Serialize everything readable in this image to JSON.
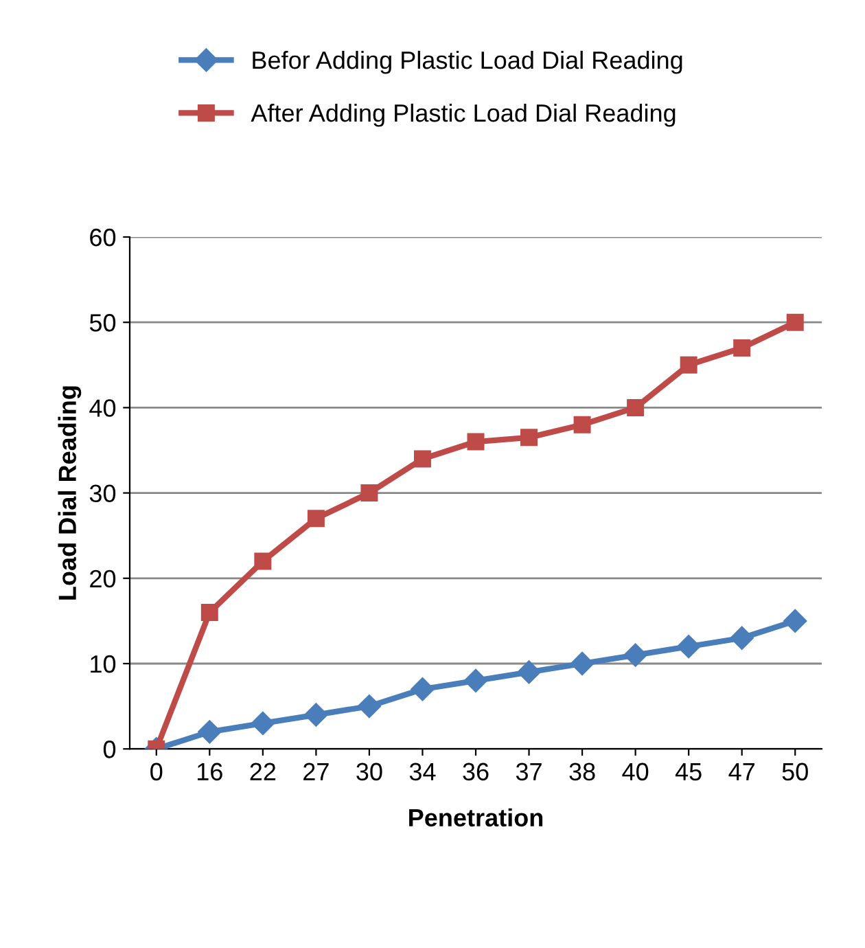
{
  "chart_data": {
    "type": "line",
    "xlabel": "Penetration",
    "ylabel": "Load Dial Reading",
    "categories": [
      "0",
      "16",
      "22",
      "27",
      "30",
      "34",
      "36",
      "37",
      "38",
      "40",
      "45",
      "47",
      "50"
    ],
    "series": [
      {
        "name": "Befor Adding Plastic Load Dial Reading",
        "color": "#4a7ebb",
        "marker": "diamond",
        "values": [
          0,
          2,
          3,
          4,
          5,
          7,
          8,
          9,
          10,
          11,
          12,
          13,
          15
        ]
      },
      {
        "name": "After Adding Plastic Load Dial Reading",
        "color": "#be4b48",
        "marker": "square",
        "values": [
          0,
          16,
          22,
          27,
          30,
          34,
          36,
          36.5,
          38,
          40,
          45,
          47,
          50
        ]
      }
    ],
    "ylim": [
      0,
      60
    ],
    "yticks": [
      0,
      10,
      20,
      30,
      40,
      50,
      60
    ],
    "grid": "y",
    "legend": "top",
    "line_style": "solid"
  }
}
